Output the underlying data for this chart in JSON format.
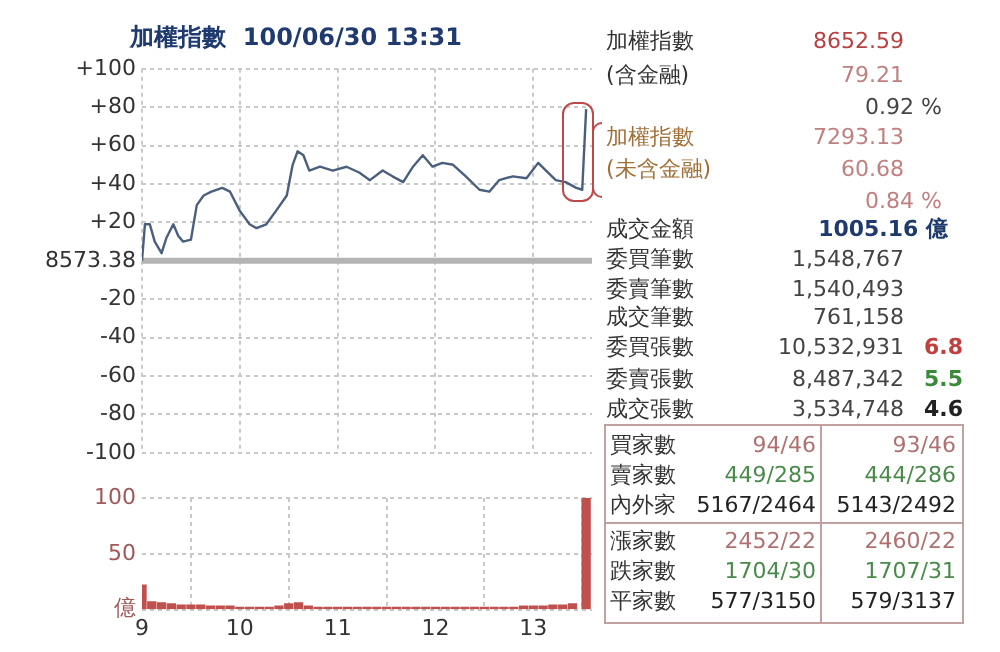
{
  "chart_data": [
    {
      "type": "line",
      "title": "加權指數  100/06/30 13:31",
      "color": "#4a5f7e",
      "x": [
        9.0,
        9.03,
        9.08,
        9.13,
        9.2,
        9.25,
        9.32,
        9.37,
        9.42,
        9.5,
        9.56,
        9.63,
        9.71,
        9.82,
        9.9,
        10.0,
        10.1,
        10.17,
        10.27,
        10.37,
        10.48,
        10.54,
        10.59,
        10.65,
        10.71,
        10.82,
        10.95,
        11.09,
        11.22,
        11.33,
        11.46,
        11.56,
        11.67,
        11.77,
        11.87,
        11.97,
        12.07,
        12.18,
        12.31,
        12.45,
        12.55,
        12.65,
        12.79,
        12.93,
        13.05,
        13.13,
        13.23,
        13.33,
        13.44,
        13.5,
        13.54
      ],
      "values": [
        0,
        19,
        19,
        10,
        4,
        12,
        19,
        13,
        10,
        11,
        29,
        34,
        36,
        38,
        36,
        26,
        19,
        17,
        19,
        26,
        34,
        50,
        57,
        55,
        47,
        49,
        47,
        49,
        46,
        42,
        47,
        44,
        41,
        49,
        55,
        49,
        51,
        50,
        44,
        37,
        36,
        42,
        44,
        43,
        51,
        47,
        42,
        41,
        38,
        37,
        79
      ],
      "xlim": [
        9,
        13.6
      ],
      "xticks": [
        {
          "value": 9,
          "label": null
        },
        {
          "value": 10,
          "label": null
        },
        {
          "value": 11,
          "label": null
        },
        {
          "value": 12,
          "label": null
        },
        {
          "value": 13,
          "label": null
        }
      ],
      "ylim": [
        -100,
        100
      ],
      "yticks": [
        {
          "value": 100,
          "label": "+100"
        },
        {
          "value": 80,
          "label": "+80"
        },
        {
          "value": 60,
          "label": "+60"
        },
        {
          "value": 40,
          "label": "+40"
        },
        {
          "value": 20,
          "label": "+20"
        },
        {
          "value": 0,
          "label": null
        },
        -20,
        -40,
        -60,
        -80,
        -100
      ],
      "grid": true,
      "tick_labels": "y",
      "ylabel": "8573.38",
      "ref_lines": [
        {
          "axis": "y",
          "value": 0,
          "color": "#b4b4b4"
        }
      ]
    },
    {
      "type": "bar",
      "color": "#c0504d",
      "x": [
        9.0,
        9.1,
        9.2,
        9.3,
        9.4,
        9.5,
        9.6,
        9.7,
        9.8,
        9.9,
        10.0,
        10.1,
        10.2,
        10.3,
        10.4,
        10.5,
        10.6,
        10.7,
        10.8,
        10.9,
        11.0,
        11.1,
        11.2,
        11.3,
        11.4,
        11.5,
        11.6,
        11.7,
        11.8,
        11.9,
        12.0,
        12.1,
        12.2,
        12.3,
        12.4,
        12.5,
        12.6,
        12.7,
        12.8,
        12.9,
        13.0,
        13.1,
        13.2,
        13.3,
        13.4,
        13.54
      ],
      "values": [
        22,
        7,
        6,
        5,
        4,
        4,
        4,
        3,
        3,
        3,
        2,
        2,
        2,
        2,
        3,
        5,
        6,
        3,
        2,
        2,
        2,
        2,
        2,
        2,
        2,
        2,
        2,
        2,
        2,
        2,
        2,
        2,
        2,
        2,
        2,
        2,
        2,
        2,
        2,
        3,
        3,
        3,
        4,
        4,
        5,
        100
      ],
      "xlim": [
        9,
        13.6
      ],
      "xticks": [
        9,
        10,
        11,
        12,
        13
      ],
      "ylim": [
        0,
        100
      ],
      "yticks": [
        {
          "value": 0,
          "label": "億"
        },
        50,
        100
      ],
      "grid": true
    },
    {
      "type": "other",
      "annotations": [
        "加權指數",
        "8652.59",
        "(含金融)",
        "79.21",
        "0.92 %",
        "加權指數",
        "7293.13",
        "(未含金融)",
        "60.68",
        "0.84 %",
        "成交金額",
        "1005.16 億",
        "委買筆數",
        "1,548,767",
        "委賣筆數",
        "1,540,493",
        "成交筆數",
        "761,158",
        "委買張數",
        "10,532,931",
        "6.8",
        "委賣張數",
        "8,487,342",
        "5.5",
        "成交張數",
        "3,534,748",
        "4.6",
        "買家數",
        "94/46",
        "93/46",
        "賣家數",
        "449/285",
        "444/286",
        "內外家",
        "5167/2464",
        "5143/2492",
        "漲家數",
        "2452/22",
        "2460/22",
        "跌家數",
        "1704/30",
        "1707/31",
        "平家數",
        "577/3150",
        "579/3137"
      ]
    }
  ]
}
